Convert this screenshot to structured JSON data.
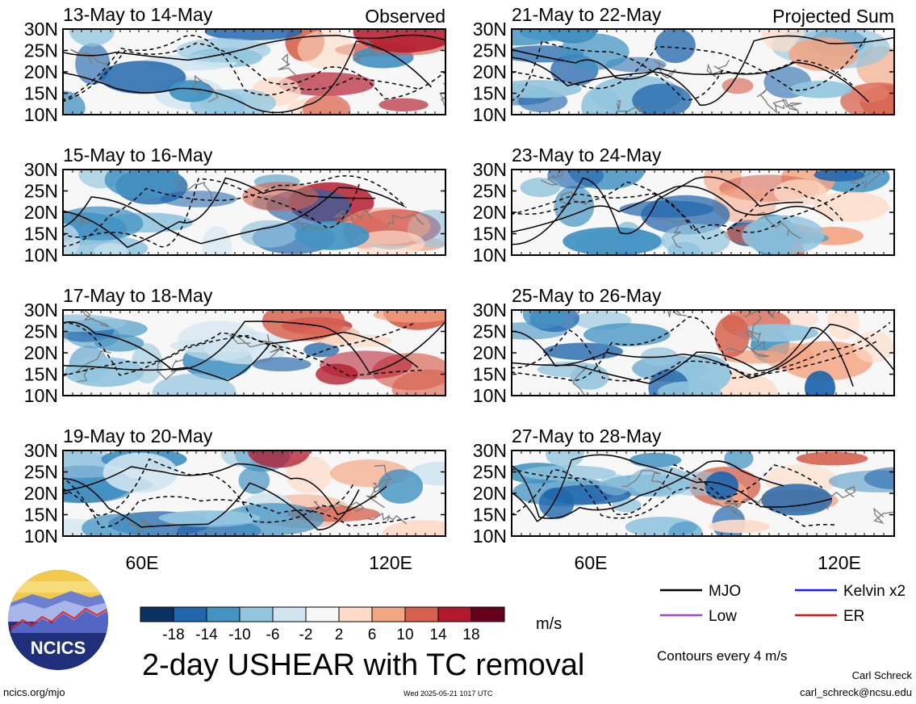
{
  "chart_data": {
    "type": "heatmap",
    "panel_group_labels": [
      "Observed",
      "Projected Sum"
    ],
    "panels": [
      {
        "title": "13-May to 14-May",
        "column": "Observed"
      },
      {
        "title": "15-May to 16-May",
        "column": "Observed"
      },
      {
        "title": "17-May to 18-May",
        "column": "Observed"
      },
      {
        "title": "19-May to 20-May",
        "column": "Observed"
      },
      {
        "title": "21-May to 22-May",
        "column": "Projected Sum"
      },
      {
        "title": "23-May to 24-May",
        "column": "Projected Sum"
      },
      {
        "title": "25-May to 26-May",
        "column": "Projected Sum"
      },
      {
        "title": "27-May to 28-May",
        "column": "Projected Sum"
      }
    ],
    "y_ticks": [
      "30N",
      "25N",
      "20N",
      "15N",
      "10N"
    ],
    "x_ticks": [
      "60E",
      "120E"
    ],
    "colorbar": {
      "ticks": [
        "-18",
        "-14",
        "-10",
        "-6",
        "-2",
        "2",
        "6",
        "10",
        "14",
        "18"
      ],
      "units": "m/s",
      "colors": [
        "#0b3265",
        "#2166ac",
        "#4393c3",
        "#92c5de",
        "#d1e5f0",
        "#f7f7f7",
        "#fddbc7",
        "#f4a582",
        "#d6604d",
        "#b2182b",
        "#67001f"
      ]
    },
    "legend": [
      {
        "label": "MJO",
        "color": "#000000"
      },
      {
        "label": "Kelvin x2",
        "color": "#1a1aff"
      },
      {
        "label": "Low",
        "color": "#a040e0"
      },
      {
        "label": "ER",
        "color": "#e01010"
      }
    ],
    "contour_note": "Contours every 4 m/s",
    "title": "2-day USHEAR with TC removal"
  },
  "footer": {
    "site": "ncics.org/mjo",
    "timestamp": "Wed 2025-05-21 1017 UTC",
    "author": "Carl Schreck",
    "email": "carl_schreck@ncsu.edu"
  },
  "logo": {
    "text": "NCICS"
  }
}
